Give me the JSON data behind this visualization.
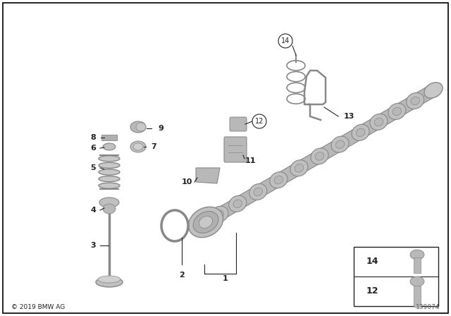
{
  "background_color": "#ffffff",
  "border_color": "#000000",
  "copyright_text": "© 2019 BMW AG",
  "part_number": "139074",
  "fig_width": 6.4,
  "fig_height": 4.48,
  "dpi": 100,
  "gray_color": "#b8b8b8",
  "dark_gray": "#888888",
  "line_color": "#222222",
  "label_font_size": 8
}
